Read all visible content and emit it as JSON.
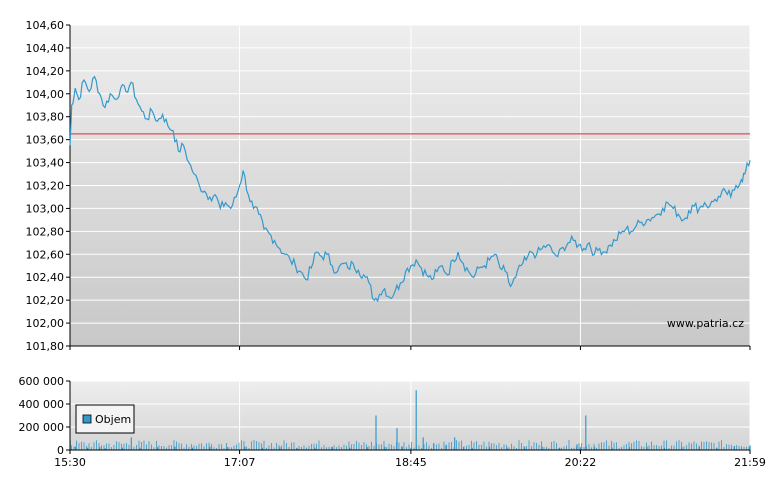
{
  "chart_data": [
    {
      "type": "line",
      "title": "",
      "xlabel": "",
      "ylabel": "",
      "ylim": [
        101.8,
        104.6
      ],
      "y_ticks": [
        "104,60",
        "104,40",
        "104,20",
        "104,00",
        "103,80",
        "103,60",
        "103,40",
        "103,20",
        "103,00",
        "102,80",
        "102,60",
        "102,40",
        "102,20",
        "102,00",
        "101,80"
      ],
      "y_tick_values": [
        104.6,
        104.4,
        104.2,
        104.0,
        103.8,
        103.6,
        103.4,
        103.2,
        103.0,
        102.8,
        102.6,
        102.4,
        102.2,
        102.0,
        101.8
      ],
      "x_range": [
        "15:30",
        "21:59"
      ],
      "reference_line": {
        "value": 103.65,
        "color": "#e05050"
      },
      "watermark": "www.patria.cz",
      "grid": true,
      "line_color": "#3399cc",
      "series": [
        {
          "points": [
            [
              "15:30",
              103.55
            ],
            [
              "15:31",
              103.9
            ],
            [
              "15:33",
              104.05
            ],
            [
              "15:35",
              103.95
            ],
            [
              "15:38",
              104.12
            ],
            [
              "15:41",
              104.02
            ],
            [
              "15:44",
              104.15
            ],
            [
              "15:47",
              104.0
            ],
            [
              "15:50",
              103.88
            ],
            [
              "15:53",
              104.0
            ],
            [
              "15:56",
              103.95
            ],
            [
              "15:59",
              104.05
            ],
            [
              "16:02",
              104.02
            ],
            [
              "16:05",
              104.1
            ],
            [
              "16:08",
              103.95
            ],
            [
              "16:11",
              103.85
            ],
            [
              "16:14",
              103.78
            ],
            [
              "16:17",
              103.85
            ],
            [
              "16:20",
              103.76
            ],
            [
              "16:23",
              103.82
            ],
            [
              "16:26",
              103.72
            ],
            [
              "16:29",
              103.68
            ],
            [
              "16:32",
              103.5
            ],
            [
              "16:35",
              103.55
            ],
            [
              "16:38",
              103.4
            ],
            [
              "16:41",
              103.3
            ],
            [
              "16:44",
              103.2
            ],
            [
              "16:47",
              103.15
            ],
            [
              "16:50",
              103.1
            ],
            [
              "16:53",
              103.12
            ],
            [
              "16:56",
              103.0
            ],
            [
              "16:59",
              103.05
            ],
            [
              "17:02",
              103.0
            ],
            [
              "17:05",
              103.1
            ],
            [
              "17:07",
              103.2
            ],
            [
              "17:09",
              103.33
            ],
            [
              "17:12",
              103.12
            ],
            [
              "17:15",
              103.0
            ],
            [
              "17:18",
              102.95
            ],
            [
              "17:21",
              102.82
            ],
            [
              "17:24",
              102.78
            ],
            [
              "17:27",
              102.72
            ],
            [
              "17:30",
              102.65
            ],
            [
              "17:33",
              102.6
            ],
            [
              "17:36",
              102.55
            ],
            [
              "17:39",
              102.5
            ],
            [
              "17:42",
              102.45
            ],
            [
              "17:45",
              102.38
            ],
            [
              "17:48",
              102.48
            ],
            [
              "17:51",
              102.62
            ],
            [
              "17:54",
              102.58
            ],
            [
              "17:57",
              102.6
            ],
            [
              "18:00",
              102.5
            ],
            [
              "18:03",
              102.45
            ],
            [
              "18:06",
              102.52
            ],
            [
              "18:09",
              102.48
            ],
            [
              "18:12",
              102.52
            ],
            [
              "18:15",
              102.46
            ],
            [
              "18:18",
              102.42
            ],
            [
              "18:21",
              102.35
            ],
            [
              "18:24",
              102.2
            ],
            [
              "18:27",
              102.25
            ],
            [
              "18:30",
              102.3
            ],
            [
              "18:33",
              102.22
            ],
            [
              "18:36",
              102.28
            ],
            [
              "18:39",
              102.35
            ],
            [
              "18:42",
              102.45
            ],
            [
              "18:45",
              102.5
            ],
            [
              "18:48",
              102.55
            ],
            [
              "18:51",
              102.48
            ],
            [
              "18:54",
              102.42
            ],
            [
              "18:57",
              102.38
            ],
            [
              "19:00",
              102.45
            ],
            [
              "19:03",
              102.5
            ],
            [
              "19:06",
              102.42
            ],
            [
              "19:09",
              102.55
            ],
            [
              "19:12",
              102.62
            ],
            [
              "19:15",
              102.52
            ],
            [
              "19:18",
              102.45
            ],
            [
              "19:21",
              102.4
            ],
            [
              "19:24",
              102.48
            ],
            [
              "19:27",
              102.5
            ],
            [
              "19:30",
              102.55
            ],
            [
              "19:33",
              102.6
            ],
            [
              "19:36",
              102.48
            ],
            [
              "19:39",
              102.45
            ],
            [
              "19:42",
              102.32
            ],
            [
              "19:45",
              102.4
            ],
            [
              "19:48",
              102.5
            ],
            [
              "19:51",
              102.55
            ],
            [
              "19:54",
              102.62
            ],
            [
              "19:57",
              102.6
            ],
            [
              "20:00",
              102.65
            ],
            [
              "20:03",
              102.68
            ],
            [
              "20:06",
              102.62
            ],
            [
              "20:09",
              102.58
            ],
            [
              "20:12",
              102.66
            ],
            [
              "20:15",
              102.7
            ],
            [
              "20:18",
              102.72
            ],
            [
              "20:21",
              102.68
            ],
            [
              "20:24",
              102.65
            ],
            [
              "20:27",
              102.7
            ],
            [
              "20:30",
              102.6
            ],
            [
              "20:33",
              102.65
            ],
            [
              "20:36",
              102.62
            ],
            [
              "20:39",
              102.68
            ],
            [
              "20:42",
              102.72
            ],
            [
              "20:45",
              102.78
            ],
            [
              "20:48",
              102.82
            ],
            [
              "20:51",
              102.8
            ],
            [
              "20:54",
              102.85
            ],
            [
              "20:57",
              102.88
            ],
            [
              "21:00",
              102.9
            ],
            [
              "21:03",
              102.92
            ],
            [
              "21:06",
              102.95
            ],
            [
              "21:09",
              103.0
            ],
            [
              "21:12",
              103.05
            ],
            [
              "21:15",
              103.0
            ],
            [
              "21:18",
              102.95
            ],
            [
              "21:21",
              102.9
            ],
            [
              "21:24",
              102.98
            ],
            [
              "21:27",
              103.02
            ],
            [
              "21:30",
              103.0
            ],
            [
              "21:33",
              103.05
            ],
            [
              "21:36",
              103.02
            ],
            [
              "21:39",
              103.08
            ],
            [
              "21:42",
              103.1
            ],
            [
              "21:45",
              103.15
            ],
            [
              "21:48",
              103.1
            ],
            [
              "21:51",
              103.2
            ],
            [
              "21:54",
              103.25
            ],
            [
              "21:56",
              103.3
            ],
            [
              "21:58",
              103.38
            ],
            [
              "21:59",
              103.42
            ]
          ]
        }
      ]
    },
    {
      "type": "bar",
      "title": "",
      "xlabel": "",
      "ylabel": "",
      "ylim": [
        0,
        600000
      ],
      "y_ticks": [
        "600 000",
        "400 000",
        "200 000",
        "0"
      ],
      "y_tick_values": [
        600000,
        400000,
        200000,
        0
      ],
      "x_ticks": [
        "15:30",
        "17:07",
        "18:45",
        "20:22",
        "21:59"
      ],
      "legend": [
        "Objem"
      ],
      "bar_color": "#3399cc",
      "series": [
        {
          "name": "Objem",
          "points": [
            [
              "15:30",
              80000
            ],
            [
              "15:33",
              30000
            ],
            [
              "15:40",
              20000
            ],
            [
              "15:47",
              25000
            ],
            [
              "15:50",
              15000
            ],
            [
              "16:00",
              20000
            ],
            [
              "16:05",
              110000
            ],
            [
              "16:10",
              20000
            ],
            [
              "16:20",
              25000
            ],
            [
              "16:30",
              30000
            ],
            [
              "16:40",
              20000
            ],
            [
              "16:50",
              30000
            ],
            [
              "17:00",
              25000
            ],
            [
              "17:10",
              30000
            ],
            [
              "17:20",
              20000
            ],
            [
              "17:30",
              25000
            ],
            [
              "17:40",
              15000
            ],
            [
              "17:50",
              20000
            ],
            [
              "18:00",
              25000
            ],
            [
              "18:10",
              20000
            ],
            [
              "18:20",
              25000
            ],
            [
              "18:25",
              300000
            ],
            [
              "18:30",
              30000
            ],
            [
              "18:37",
              190000
            ],
            [
              "18:40",
              30000
            ],
            [
              "18:45",
              20000
            ],
            [
              "18:48",
              520000
            ],
            [
              "18:52",
              110000
            ],
            [
              "18:58",
              60000
            ],
            [
              "19:05",
              40000
            ],
            [
              "19:10",
              110000
            ],
            [
              "19:15",
              25000
            ],
            [
              "19:20",
              20000
            ],
            [
              "19:30",
              30000
            ],
            [
              "19:40",
              20000
            ],
            [
              "19:50",
              25000
            ],
            [
              "20:00",
              30000
            ],
            [
              "20:10",
              20000
            ],
            [
              "20:20",
              50000
            ],
            [
              "20:22",
              25000
            ],
            [
              "20:25",
              300000
            ],
            [
              "20:30",
              30000
            ],
            [
              "20:40",
              20000
            ],
            [
              "20:50",
              25000
            ],
            [
              "21:00",
              30000
            ],
            [
              "21:10",
              20000
            ],
            [
              "21:20",
              25000
            ],
            [
              "21:30",
              30000
            ],
            [
              "21:40",
              20000
            ],
            [
              "21:50",
              35000
            ],
            [
              "21:59",
              40000
            ]
          ]
        }
      ]
    }
  ]
}
